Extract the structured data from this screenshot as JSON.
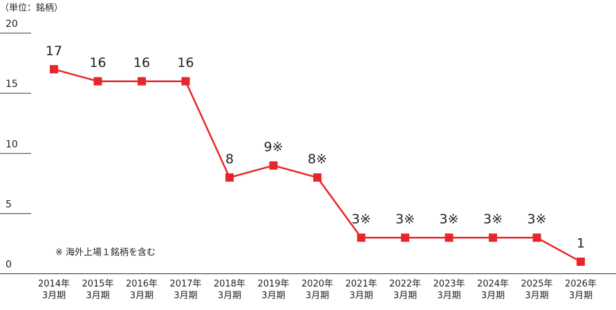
{
  "chart_data": {
    "type": "line",
    "unit_label": "（単位：銘柄）",
    "note": "※ 海外上場１銘柄を含む",
    "categories": [
      "2014年\n3月期",
      "2015年\n3月期",
      "2016年\n3月期",
      "2017年\n3月期",
      "2018年\n3月期",
      "2019年\n3月期",
      "2020年\n3月期",
      "2021年\n3月期",
      "2022年\n3月期",
      "2023年\n3月期",
      "2024年\n3月期",
      "2025年\n3月期",
      "2026年\n3月期"
    ],
    "series": [
      {
        "color": "#e8262a",
        "values": [
          17,
          16,
          16,
          16,
          8,
          9,
          8,
          3,
          3,
          3,
          3,
          3,
          1
        ],
        "value_labels": [
          "17",
          "16",
          "16",
          "16",
          "8",
          "9※",
          "8※",
          "3※",
          "3※",
          "3※",
          "3※",
          "3※",
          "1"
        ]
      }
    ],
    "ylim": [
      0,
      20
    ],
    "yticks": [
      0,
      5,
      10,
      15,
      20
    ]
  }
}
